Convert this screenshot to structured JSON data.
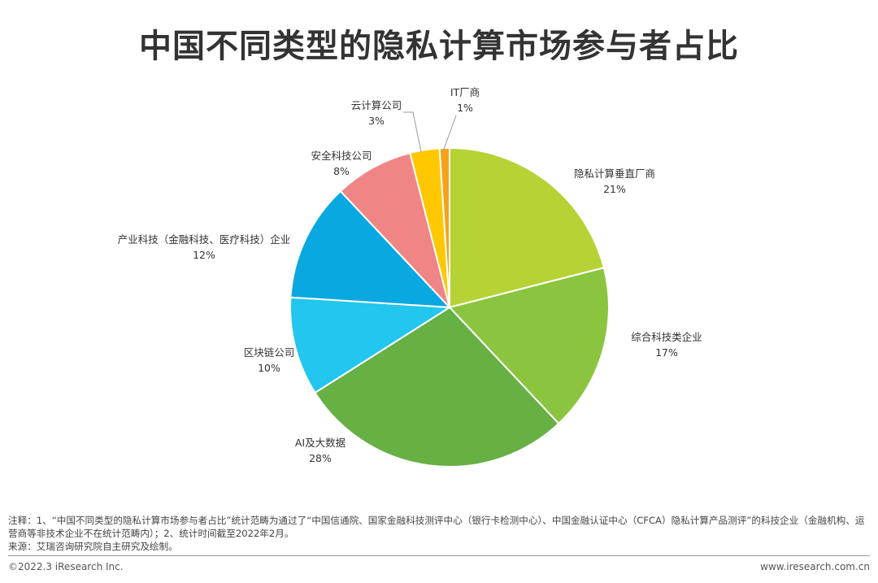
{
  "chart_data": {
    "type": "pie",
    "title": "中国不同类型的隐私计算市场参与者占比",
    "slices": [
      {
        "name": "隐私计算垂直厂商",
        "label": "21%",
        "value": 21,
        "color": "#b5d334"
      },
      {
        "name": "综合科技类企业",
        "label": "17%",
        "value": 17,
        "color": "#8bc53f"
      },
      {
        "name": "AI及大数据",
        "label": "28%",
        "value": 28,
        "color": "#66b044"
      },
      {
        "name": "区块链公司",
        "label": "10%",
        "value": 10,
        "color": "#22c6ee"
      },
      {
        "name": "产业科技（金融科技、医疗科技）企业",
        "label": "12%",
        "value": 12,
        "color": "#0aa8e0"
      },
      {
        "name": "安全科技公司",
        "label": "8%",
        "value": 8,
        "color": "#f08585"
      },
      {
        "name": "云计算公司",
        "label": "3%",
        "value": 3,
        "color": "#ffc800"
      },
      {
        "name": "IT厂商",
        "label": "1%",
        "value": 1,
        "color": "#f5a21a"
      }
    ]
  },
  "notes": {
    "note": "注释：1、“中国不同类型的隐私计算市场参与者占比”统计范畴为通过了“中国信通院、国家金融科技测评中心（银行卡检测中心）、中国金融认证中心（CFCA）隐私计算产品测评”的科技企业（金融机构、运营商等非技术企业不在统计范畴内）；2、统计时间截至2022年2月。",
    "source": "来源：艾瑞咨询研究院自主研究及绘制。"
  },
  "footer": {
    "copyright": "©2022.3 iResearch Inc.",
    "website": "www.iresearch.com.cn"
  }
}
